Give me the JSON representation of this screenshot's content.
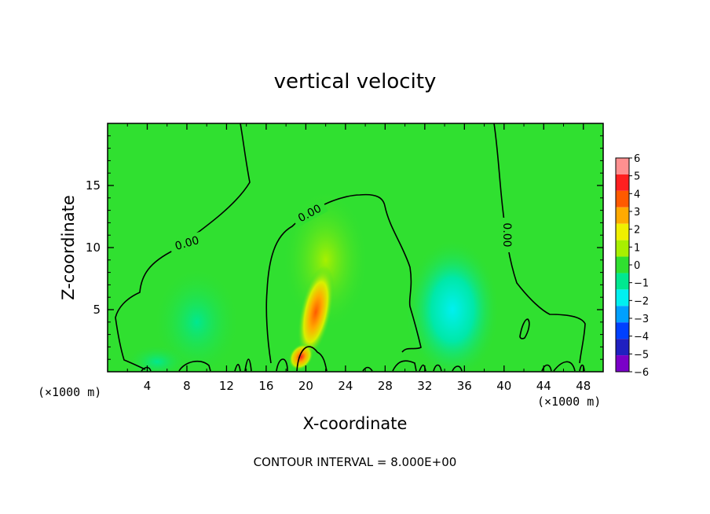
{
  "chart_data": {
    "type": "heatmap",
    "title": "vertical velocity",
    "xlabel": "X-coordinate",
    "ylabel": "Z-coordinate",
    "x_unit_left": "(×1000 m)",
    "x_unit_right": "(×1000 m)",
    "xlim": [
      0,
      50
    ],
    "ylim": [
      0,
      20
    ],
    "x_ticks": [
      4,
      8,
      12,
      16,
      20,
      24,
      28,
      32,
      36,
      40,
      44,
      48
    ],
    "y_ticks": [
      5,
      10,
      15
    ],
    "colorbar": {
      "min": -6,
      "max": 6,
      "labels": [
        6,
        5,
        4,
        3,
        2,
        1,
        0,
        -1,
        -2,
        -3,
        -4,
        -5,
        -6
      ],
      "colors": [
        "#ff9090",
        "#ff2020",
        "#ff5a00",
        "#ffaa00",
        "#f0f000",
        "#a8f000",
        "#30e030",
        "#00e890",
        "#00f0f0",
        "#00a0ff",
        "#0040ff",
        "#2020c0",
        "#7a00c8"
      ]
    },
    "contour_labels": [
      "0.00",
      "0.00",
      "0.00"
    ],
    "contour_interval_text": "CONTOUR INTERVAL = 8.000E+00",
    "field_features": [
      {
        "kind": "updraft",
        "x": 21,
        "z": 4.8,
        "w": 3.2
      },
      {
        "kind": "updraft",
        "x": 19.5,
        "z": 1.2,
        "w": 4.5
      },
      {
        "kind": "weak-updraft",
        "x": 22,
        "z": 9,
        "w": 0.8
      },
      {
        "kind": "downdraft",
        "x": 34.8,
        "z": 5,
        "w": -1.8
      },
      {
        "kind": "weak-downdraft",
        "x": 9,
        "z": 4,
        "w": -0.6
      },
      {
        "kind": "weak-downdraft",
        "x": 5,
        "z": 0.8,
        "w": -0.8
      }
    ]
  }
}
